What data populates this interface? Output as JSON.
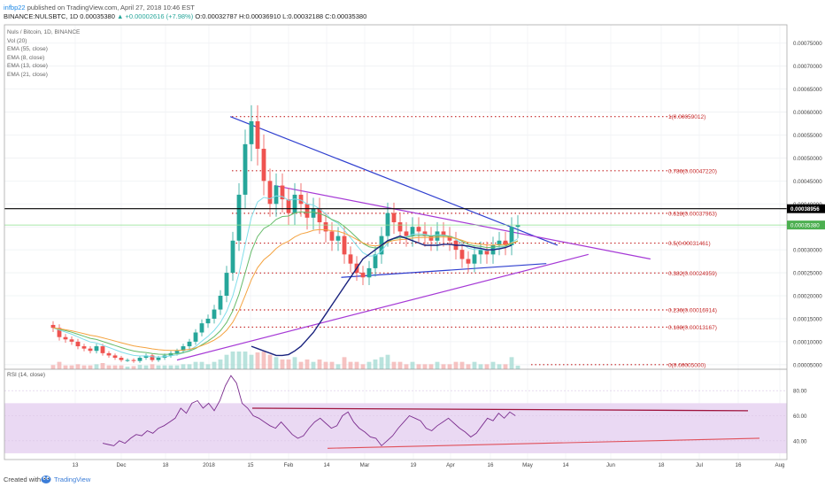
{
  "header": {
    "author": "infbp22",
    "published_text": " published on TradingView.com, April 27, 2018 10:46 EST",
    "symbol_line": "BINANCE:NULSBTC, 1D 0.00035380",
    "change": " ▲ +0.00002616 (+7.98%)",
    "ohlc": " O:0.00032787 H:0.00036910 L:0.00032188 C:0.00035380"
  },
  "legend": {
    "title": "Nuls / Bitcoin, 1D, BINANCE",
    "items": [
      "Vol (20)",
      "EMA (55, close)",
      "EMA (8, close)",
      "EMA (13, close)",
      "EMA (21, close)"
    ]
  },
  "rsi_label": "RSI (14, close)",
  "footer": {
    "created": "Created with",
    "brand": "TradingView"
  },
  "colors": {
    "up": "#26a69a",
    "down": "#ef5350",
    "ema55": "#1a237e",
    "ema8": "#80deea",
    "ema13": "#66bb6a",
    "ema21": "#f4a340",
    "fib": "#c62828",
    "trend_blue": "#2f3fcf",
    "trend_purple": "#a63ad6",
    "rsi_line": "#7b2d8e",
    "rsi_band": "#ead9f3"
  },
  "chart_data": [
    {
      "type": "candlestick",
      "y_scale": "linear",
      "ylim": [
        4e-05,
        0.00079
      ],
      "y_ticks": [
        "0.00005000",
        "0.00010000",
        "0.00015000",
        "0.00020000",
        "0.00025000",
        "0.00030000",
        "0.00035000",
        "0.00040000",
        "0.00045000",
        "0.00050000",
        "0.00055000",
        "0.00060000",
        "0.00065000",
        "0.00070000",
        "0.00075000"
      ],
      "current_price_label": "0.00035380",
      "crosshair_label": "0.00038956",
      "crosshair_value": 0.00038956,
      "fib_levels": [
        {
          "label": "1(0.00059012)",
          "value": 0.00059012
        },
        {
          "label": "0.786(0.00047220)",
          "value": 0.0004722
        },
        {
          "label": "0.618(0.00037963)",
          "value": 0.00037963
        },
        {
          "label": "0.5(0.00031461)",
          "value": 0.00031461
        },
        {
          "label": "0.382(0.00024959)",
          "value": 0.00024959
        },
        {
          "label": "0.236(0.00016914)",
          "value": 0.00016914
        },
        {
          "label": "0.168(0.00013167)",
          "value": 0.00013167
        },
        {
          "label": "0(0.00005000)",
          "value": 5e-05
        }
      ],
      "x_ticks": [
        "13",
        "Dec",
        "18",
        "2018",
        "15",
        "Feb",
        "14",
        "Mar",
        "19",
        "Apr",
        "16",
        "May",
        "14",
        "Jun",
        "18",
        "Jul",
        "16",
        "Aug"
      ],
      "close": [
        0.00013,
        0.00011,
        0.000105,
        0.0001,
        9e-05,
        8.5e-05,
        8e-05,
        9e-05,
        7.5e-05,
        7e-05,
        6.5e-05,
        6e-05,
        6e-05,
        5.8e-05,
        6.5e-05,
        7e-05,
        6e-05,
        6.5e-05,
        7e-05,
        7.5e-05,
        8e-05,
        9e-05,
        0.0001,
        0.00012,
        0.00014,
        0.00015,
        0.00017,
        0.0002,
        0.00025,
        0.00032,
        0.00042,
        0.00053,
        0.00058,
        0.00052,
        0.00045,
        0.0004,
        0.00044,
        0.00041,
        0.00038,
        0.00042,
        0.0004,
        0.00037,
        0.00039,
        0.00036,
        0.00034,
        0.00032,
        0.00033,
        0.00029,
        0.00027,
        0.00025,
        0.00024,
        0.00026,
        0.00029,
        0.00033,
        0.00038,
        0.00036,
        0.00034,
        0.00033,
        0.00035,
        0.00034,
        0.00033,
        0.00032,
        0.00034,
        0.00033,
        0.00032,
        0.0003,
        0.00028,
        0.00027,
        0.00029,
        0.0003,
        0.00029,
        0.00031,
        0.00032,
        0.00031,
        0.00035,
        0.000354
      ],
      "ema55": [
        9e-05,
        8.5e-05,
        8e-05,
        7.5e-05,
        7e-05,
        7e-05,
        7.2e-05,
        8e-05,
        9e-05,
        0.000105,
        0.00012,
        0.00014,
        0.00016,
        0.00018,
        0.0002,
        0.00022,
        0.00024,
        0.00026,
        0.00028,
        0.00029,
        0.0003,
        0.00031,
        0.00032,
        0.000325,
        0.00033,
        0.000325,
        0.00032,
        0.000315,
        0.00031,
        0.00031,
        0.00031,
        0.000312,
        0.000312,
        0.00031,
        0.00031,
        0.000308,
        0.000305,
        0.000303,
        0.0003,
        0.0003,
        0.000302,
        0.000305,
        0.00031
      ]
    },
    {
      "type": "line",
      "title": "RSI (14, close)",
      "ylim": [
        25,
        95
      ],
      "y_ticks": [
        "40.00",
        "60.00",
        "80.00"
      ],
      "band": [
        30,
        70
      ],
      "values": [
        38,
        37,
        36,
        40,
        38,
        42,
        45,
        44,
        48,
        46,
        50,
        52,
        55,
        58,
        66,
        62,
        70,
        72,
        66,
        70,
        64,
        72,
        84,
        92,
        86,
        70,
        66,
        60,
        58,
        55,
        52,
        50,
        55,
        50,
        45,
        42,
        44,
        50,
        55,
        58,
        54,
        50,
        52,
        60,
        63,
        55,
        50,
        47,
        43,
        42,
        36,
        40,
        44,
        50,
        55,
        60,
        58,
        56,
        50,
        48,
        52,
        55,
        58,
        54,
        50,
        47,
        43,
        46,
        52,
        58,
        56,
        62,
        58,
        63,
        60
      ]
    }
  ]
}
